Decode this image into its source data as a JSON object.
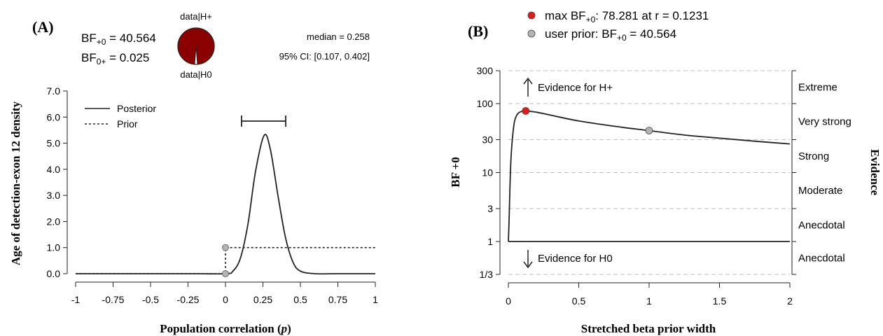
{
  "panel_a": {
    "panel_label": "(A)",
    "bf_plus0_text": "BF",
    "bf_plus0_sub": "+0",
    "bf_plus0_value": " = 40.564",
    "bf_0plus_text": "BF",
    "bf_0plus_sub": "0+",
    "bf_0plus_value": " = 0.025",
    "pie_top_label": "data|H+",
    "pie_bottom_label": "data|H0",
    "pie_fraction_h1": 0.975,
    "median_text": "median = 0.258",
    "ci_text": "95% CI: [0.107, 0.402]",
    "legend_posterior": "Posterior",
    "legend_prior": "Prior",
    "colors": {
      "pie_fill": "#8b0000",
      "curve": "#222222",
      "point": "#b3b3b3"
    }
  },
  "panel_b": {
    "panel_label": "(B)",
    "legend_max_prefix": "max BF",
    "legend_max_sub": "+0",
    "legend_max_value": ":  78.281 at r = 0.1231",
    "legend_user_prefix": "user prior:  BF",
    "legend_user_sub": "+0",
    "legend_user_value": " = 40.564",
    "evidence_h1": "Evidence for H+",
    "evidence_h0": "Evidence for H0",
    "colors": {
      "max_point": "#e31a1c",
      "user_point": "#b3b3b3",
      "curve": "#222222",
      "grid": "#bfbfbf"
    }
  },
  "chart_data": [
    {
      "type": "line",
      "title": "",
      "xlabel": "Population correlation (p)",
      "ylabel": "Age of detection-exon 12 density",
      "xlim": [
        -1,
        1
      ],
      "ylim": [
        0,
        7
      ],
      "xticks": [
        "-1",
        "-0.75",
        "-0.5",
        "-0.25",
        "0",
        "0.25",
        "0.5",
        "0.75",
        "1"
      ],
      "yticks": [
        "0.0",
        "1.0",
        "2.0",
        "3.0",
        "4.0",
        "5.0",
        "6.0",
        "7.0"
      ],
      "legend": "top-left",
      "series": [
        {
          "name": "Posterior",
          "style": "solid",
          "x": [
            -1,
            -0.25,
            0,
            0.05,
            0.1,
            0.15,
            0.2,
            0.258,
            0.3,
            0.35,
            0.4,
            0.45,
            0.5,
            0.6,
            0.75,
            1
          ],
          "y": [
            0,
            0,
            0,
            0.1,
            0.6,
            1.9,
            3.9,
            5.3,
            4.75,
            3.0,
            1.4,
            0.45,
            0.1,
            0,
            0,
            0
          ]
        },
        {
          "name": "Prior",
          "style": "dashed",
          "x": [
            -1,
            0,
            0,
            1
          ],
          "y": [
            0,
            0,
            1,
            1
          ]
        }
      ],
      "points": [
        {
          "x": 0,
          "y": 1.0
        },
        {
          "x": 0,
          "y": 0.0
        }
      ],
      "ci_interval": [
        0.107,
        0.402
      ],
      "median": 0.258
    },
    {
      "type": "line",
      "title": "",
      "xlabel": "Stretched beta prior width",
      "ylabel": "BF +0",
      "y2label": "Evidence",
      "scale": "log",
      "xlim": [
        0,
        2
      ],
      "ylim": [
        0.3333,
        300
      ],
      "xticks": [
        "0",
        "0.5",
        "1",
        "1.5",
        "2"
      ],
      "yticks": [
        "1/3",
        "1",
        "3",
        "10",
        "30",
        "100",
        "300"
      ],
      "evidence_categories": [
        "Extreme",
        "Very strong",
        "Strong",
        "Moderate",
        "Anecdotal",
        "Anecdotal"
      ],
      "series": [
        {
          "name": "",
          "x": [
            0.0,
            0.005,
            0.01,
            0.02,
            0.04,
            0.06,
            0.08,
            0.1,
            0.1231,
            0.2,
            0.3,
            0.5,
            0.75,
            1.0,
            1.25,
            1.5,
            1.75,
            2.0
          ],
          "y": [
            1,
            2,
            5,
            18,
            50,
            68,
            75,
            77.5,
            78.281,
            75,
            68,
            56,
            47,
            40.564,
            35,
            31.5,
            28.5,
            26
          ]
        }
      ],
      "points": [
        {
          "label": "max",
          "x": 0.1231,
          "y": 78.281
        },
        {
          "label": "user prior",
          "x": 1.0,
          "y": 40.564
        }
      ]
    }
  ]
}
